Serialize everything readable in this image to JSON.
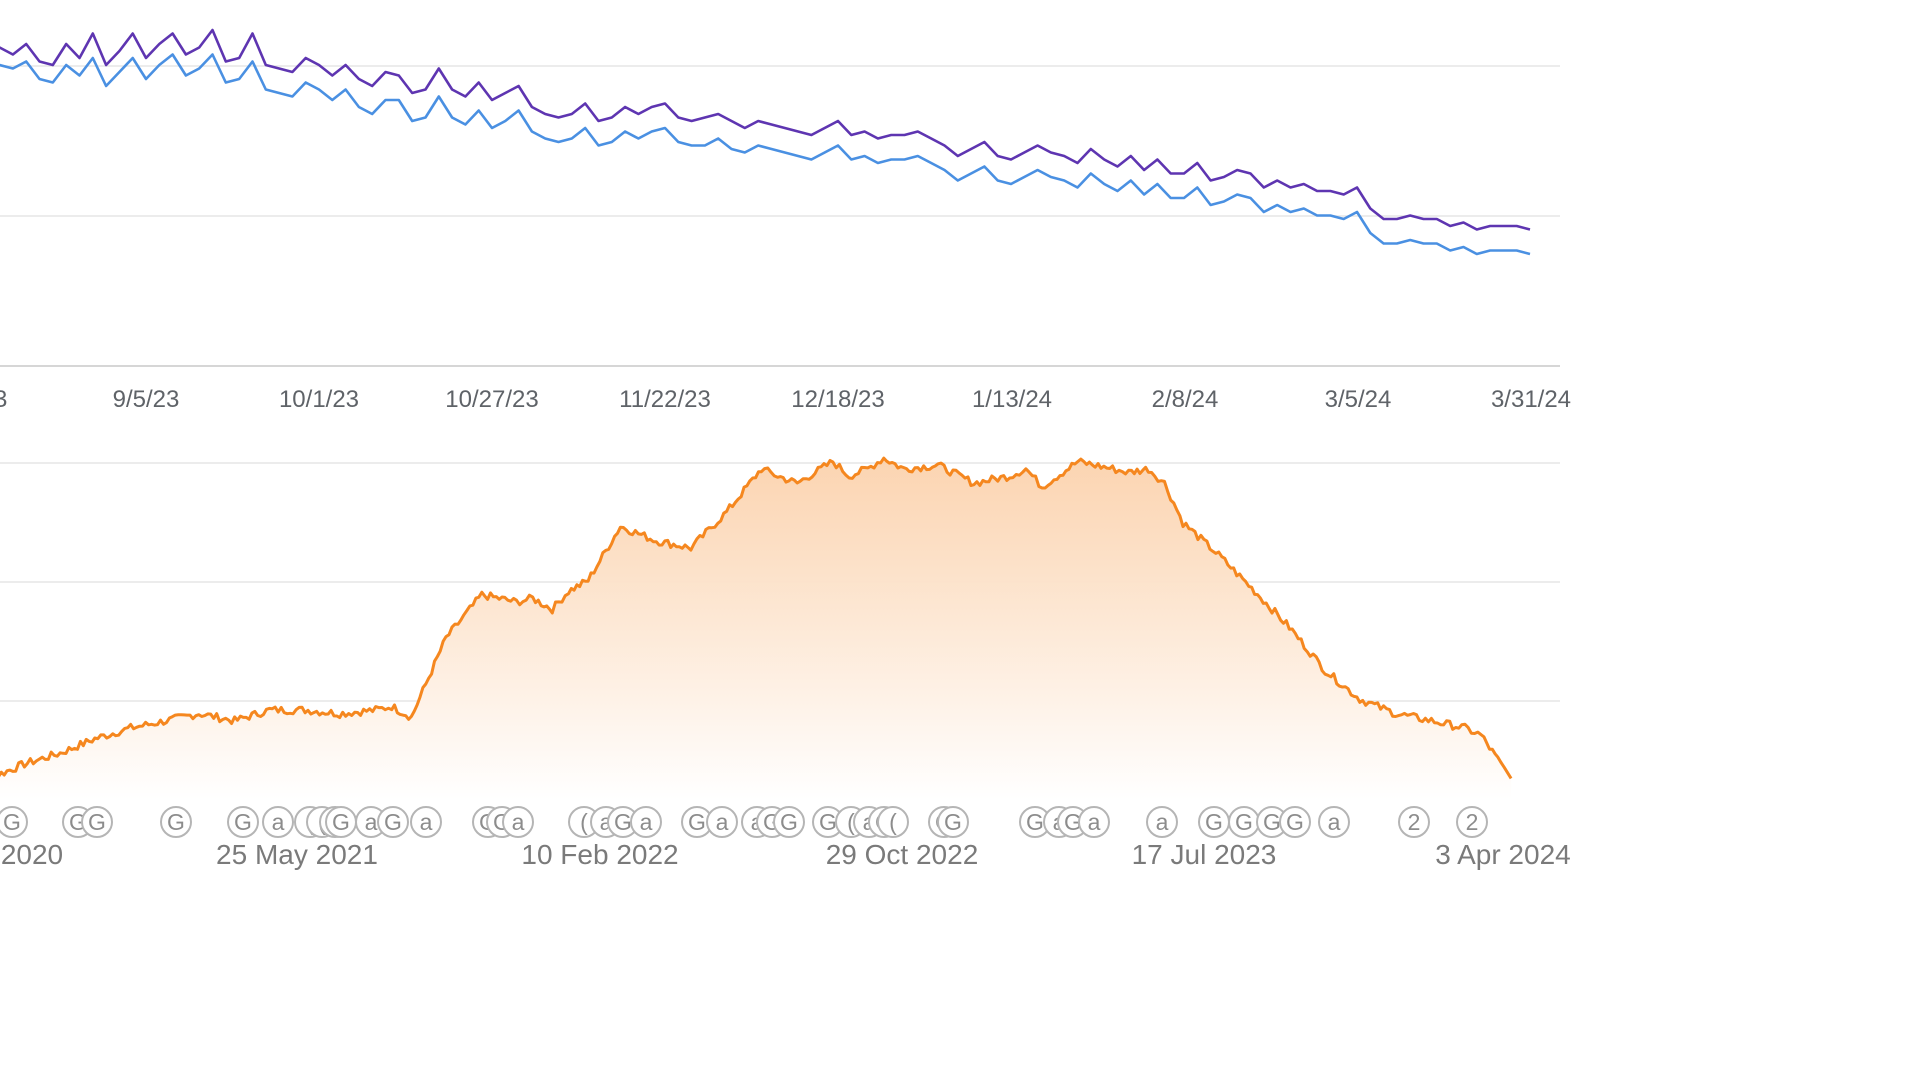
{
  "chart_data": [
    {
      "type": "line",
      "title": "",
      "xlabel": "",
      "ylabel": "",
      "tick_labels": [
        "3",
        "9/5/23",
        "10/1/23",
        "10/27/23",
        "11/22/23",
        "12/18/23",
        "1/13/24",
        "2/8/24",
        "3/5/24",
        "3/31/24"
      ],
      "grid": true,
      "colors": {
        "series_a": "#5e35b1",
        "series_b": "#4a90e2",
        "grid": "#e6e6e6",
        "axis": "#c8c8c8"
      },
      "series": [
        {
          "color": "#5e35b1",
          "x_dates": [
            "2023-08-10",
            "2023-08-12",
            "2023-08-14",
            "2023-08-16",
            "2023-08-18",
            "2023-08-20",
            "2023-08-22",
            "2023-08-24",
            "2023-08-26",
            "2023-08-28",
            "2023-08-30",
            "2023-09-01",
            "2023-09-03",
            "2023-09-05",
            "2023-09-07",
            "2023-09-09",
            "2023-09-11",
            "2023-09-13",
            "2023-09-15",
            "2023-09-17",
            "2023-09-19",
            "2023-09-21",
            "2023-09-23",
            "2023-09-25",
            "2023-09-27",
            "2023-09-29",
            "2023-10-01",
            "2023-10-03",
            "2023-10-05",
            "2023-10-07",
            "2023-10-09",
            "2023-10-11",
            "2023-10-13",
            "2023-10-15",
            "2023-10-17",
            "2023-10-19",
            "2023-10-21",
            "2023-10-23",
            "2023-10-25",
            "2023-10-27",
            "2023-10-29",
            "2023-10-31",
            "2023-11-02",
            "2023-11-04",
            "2023-11-06",
            "2023-11-08",
            "2023-11-10",
            "2023-11-12",
            "2023-11-14",
            "2023-11-16",
            "2023-11-18",
            "2023-11-20",
            "2023-11-22",
            "2023-11-24",
            "2023-11-26",
            "2023-11-28",
            "2023-11-30",
            "2023-12-02",
            "2023-12-04",
            "2023-12-06",
            "2023-12-08",
            "2023-12-10",
            "2023-12-12",
            "2023-12-14",
            "2023-12-16",
            "2023-12-18",
            "2023-12-20",
            "2023-12-22",
            "2023-12-24",
            "2023-12-26",
            "2023-12-28",
            "2023-12-30",
            "2024-01-01",
            "2024-01-03",
            "2024-01-05",
            "2024-01-07",
            "2024-01-09",
            "2024-01-11",
            "2024-01-13",
            "2024-01-15",
            "2024-01-17",
            "2024-01-19",
            "2024-01-21",
            "2024-01-23",
            "2024-01-25",
            "2024-01-27",
            "2024-01-29",
            "2024-01-31",
            "2024-02-02",
            "2024-02-04",
            "2024-02-06",
            "2024-02-08",
            "2024-02-10",
            "2024-02-12",
            "2024-02-14",
            "2024-02-16",
            "2024-02-18",
            "2024-02-20",
            "2024-02-22",
            "2024-02-24",
            "2024-02-26",
            "2024-02-28",
            "2024-03-01",
            "2024-03-03",
            "2024-03-05",
            "2024-03-07",
            "2024-03-09",
            "2024-03-11",
            "2024-03-13",
            "2024-03-15",
            "2024-03-17",
            "2024-03-19",
            "2024-03-21",
            "2024-03-23",
            "2024-03-25",
            "2024-03-27",
            "2024-03-29",
            "2024-03-31"
          ],
          "values": [
            0.89,
            0.88,
            0.91,
            0.89,
            0.92,
            0.87,
            0.86,
            0.92,
            0.88,
            0.95,
            0.86,
            0.9,
            0.95,
            0.88,
            0.92,
            0.95,
            0.89,
            0.91,
            0.96,
            0.87,
            0.88,
            0.95,
            0.86,
            0.85,
            0.84,
            0.88,
            0.86,
            0.83,
            0.86,
            0.82,
            0.8,
            0.84,
            0.83,
            0.78,
            0.79,
            0.85,
            0.79,
            0.77,
            0.81,
            0.76,
            0.78,
            0.8,
            0.74,
            0.72,
            0.71,
            0.72,
            0.75,
            0.7,
            0.71,
            0.74,
            0.72,
            0.74,
            0.75,
            0.71,
            0.7,
            0.71,
            0.72,
            0.7,
            0.68,
            0.7,
            0.69,
            0.68,
            0.67,
            0.66,
            0.68,
            0.7,
            0.66,
            0.67,
            0.65,
            0.66,
            0.66,
            0.67,
            0.65,
            0.63,
            0.6,
            0.62,
            0.64,
            0.6,
            0.59,
            0.61,
            0.63,
            0.61,
            0.6,
            0.58,
            0.62,
            0.59,
            0.57,
            0.6,
            0.56,
            0.59,
            0.55,
            0.55,
            0.58,
            0.53,
            0.54,
            0.56,
            0.55,
            0.51,
            0.53,
            0.51,
            0.52,
            0.5,
            0.5,
            0.49,
            0.51,
            0.45,
            0.42,
            0.42,
            0.43,
            0.42,
            0.42,
            0.4,
            0.41,
            0.39,
            0.4,
            0.4,
            0.4,
            0.39
          ]
        },
        {
          "color": "#4a90e2",
          "x_dates": [
            "2023-08-10",
            "2023-08-12",
            "2023-08-14",
            "2023-08-16",
            "2023-08-18",
            "2023-08-20",
            "2023-08-22",
            "2023-08-24",
            "2023-08-26",
            "2023-08-28",
            "2023-08-30",
            "2023-09-01",
            "2023-09-03",
            "2023-09-05",
            "2023-09-07",
            "2023-09-09",
            "2023-09-11",
            "2023-09-13",
            "2023-09-15",
            "2023-09-17",
            "2023-09-19",
            "2023-09-21",
            "2023-09-23",
            "2023-09-25",
            "2023-09-27",
            "2023-09-29",
            "2023-10-01",
            "2023-10-03",
            "2023-10-05",
            "2023-10-07",
            "2023-10-09",
            "2023-10-11",
            "2023-10-13",
            "2023-10-15",
            "2023-10-17",
            "2023-10-19",
            "2023-10-21",
            "2023-10-23",
            "2023-10-25",
            "2023-10-27",
            "2023-10-29",
            "2023-10-31",
            "2023-11-02",
            "2023-11-04",
            "2023-11-06",
            "2023-11-08",
            "2023-11-10",
            "2023-11-12",
            "2023-11-14",
            "2023-11-16",
            "2023-11-18",
            "2023-11-20",
            "2023-11-22",
            "2023-11-24",
            "2023-11-26",
            "2023-11-28",
            "2023-11-30",
            "2023-12-02",
            "2023-12-04",
            "2023-12-06",
            "2023-12-08",
            "2023-12-10",
            "2023-12-12",
            "2023-12-14",
            "2023-12-16",
            "2023-12-18",
            "2023-12-20",
            "2023-12-22",
            "2023-12-24",
            "2023-12-26",
            "2023-12-28",
            "2023-12-30",
            "2024-01-01",
            "2024-01-03",
            "2024-01-05",
            "2024-01-07",
            "2024-01-09",
            "2024-01-11",
            "2024-01-13",
            "2024-01-15",
            "2024-01-17",
            "2024-01-19",
            "2024-01-21",
            "2024-01-23",
            "2024-01-25",
            "2024-01-27",
            "2024-01-29",
            "2024-01-31",
            "2024-02-02",
            "2024-02-04",
            "2024-02-06",
            "2024-02-08",
            "2024-02-10",
            "2024-02-12",
            "2024-02-14",
            "2024-02-16",
            "2024-02-18",
            "2024-02-20",
            "2024-02-22",
            "2024-02-24",
            "2024-02-26",
            "2024-02-28",
            "2024-03-01",
            "2024-03-03",
            "2024-03-05",
            "2024-03-07",
            "2024-03-09",
            "2024-03-11",
            "2024-03-13",
            "2024-03-15",
            "2024-03-17",
            "2024-03-19",
            "2024-03-21",
            "2024-03-23",
            "2024-03-25",
            "2024-03-27",
            "2024-03-29",
            "2024-03-31"
          ],
          "values": [
            0.86,
            0.84,
            0.86,
            0.85,
            0.87,
            0.82,
            0.81,
            0.86,
            0.83,
            0.88,
            0.8,
            0.84,
            0.88,
            0.82,
            0.86,
            0.89,
            0.83,
            0.85,
            0.89,
            0.81,
            0.82,
            0.87,
            0.79,
            0.78,
            0.77,
            0.81,
            0.79,
            0.76,
            0.79,
            0.74,
            0.72,
            0.76,
            0.76,
            0.7,
            0.71,
            0.77,
            0.71,
            0.69,
            0.73,
            0.68,
            0.7,
            0.73,
            0.67,
            0.65,
            0.64,
            0.65,
            0.68,
            0.63,
            0.64,
            0.67,
            0.65,
            0.67,
            0.68,
            0.64,
            0.63,
            0.63,
            0.65,
            0.62,
            0.61,
            0.63,
            0.62,
            0.61,
            0.6,
            0.59,
            0.61,
            0.63,
            0.59,
            0.6,
            0.58,
            0.59,
            0.59,
            0.6,
            0.58,
            0.56,
            0.53,
            0.55,
            0.57,
            0.53,
            0.52,
            0.54,
            0.56,
            0.54,
            0.53,
            0.51,
            0.55,
            0.52,
            0.5,
            0.53,
            0.49,
            0.52,
            0.48,
            0.48,
            0.51,
            0.46,
            0.47,
            0.49,
            0.48,
            0.44,
            0.46,
            0.44,
            0.45,
            0.43,
            0.43,
            0.42,
            0.44,
            0.38,
            0.35,
            0.35,
            0.36,
            0.35,
            0.35,
            0.33,
            0.34,
            0.32,
            0.33,
            0.33,
            0.33,
            0.32
          ]
        }
      ]
    },
    {
      "type": "area",
      "title": "",
      "xlabel": "",
      "ylabel": "",
      "tick_labels": [
        "2020",
        "25 May 2021",
        "10 Feb 2022",
        "29 Oct 2022",
        "17 Jul 2023",
        "3 Apr 2024"
      ],
      "grid": true,
      "colors": {
        "line": "#f5871f",
        "fill_top": "#fbd2ad",
        "fill_bottom": "#ffffff",
        "grid": "#e6e6e6",
        "annotation": "#9a9a9a"
      },
      "series": [
        {
          "color": "#f5871f",
          "x_dates": [
            "2020-08-01",
            "2020-09-01",
            "2020-10-01",
            "2020-11-01",
            "2020-12-01",
            "2021-01-01",
            "2021-02-01",
            "2021-03-01",
            "2021-04-01",
            "2021-05-01",
            "2021-06-01",
            "2021-07-01",
            "2021-08-01",
            "2021-08-15",
            "2021-09-01",
            "2021-10-01",
            "2021-11-01",
            "2021-12-01",
            "2021-12-15",
            "2022-01-01",
            "2022-01-15",
            "2022-02-01",
            "2022-03-01",
            "2022-04-01",
            "2022-05-01",
            "2022-06-01",
            "2022-07-01",
            "2022-07-15",
            "2022-08-01",
            "2022-09-01",
            "2022-09-15",
            "2022-10-01",
            "2022-10-15",
            "2022-11-01",
            "2022-12-01",
            "2023-01-01",
            "2023-02-01",
            "2023-02-15",
            "2023-03-01",
            "2023-04-01",
            "2023-05-01",
            "2023-05-15",
            "2023-06-01",
            "2023-06-15",
            "2023-07-01",
            "2023-08-01",
            "2023-09-01",
            "2023-10-01",
            "2023-11-01",
            "2023-12-01",
            "2024-01-01",
            "2024-02-01",
            "2024-03-01",
            "2024-03-15",
            "2024-04-01",
            "2024-04-10"
          ],
          "values": [
            0.04,
            0.06,
            0.1,
            0.13,
            0.17,
            0.2,
            0.22,
            0.24,
            0.22,
            0.25,
            0.25,
            0.24,
            0.25,
            0.26,
            0.23,
            0.45,
            0.57,
            0.55,
            0.56,
            0.53,
            0.58,
            0.61,
            0.76,
            0.72,
            0.7,
            0.8,
            0.92,
            0.9,
            0.88,
            0.94,
            0.9,
            0.92,
            0.95,
            0.92,
            0.93,
            0.88,
            0.9,
            0.92,
            0.87,
            0.94,
            0.92,
            0.91,
            0.92,
            0.88,
            0.77,
            0.68,
            0.58,
            0.48,
            0.36,
            0.28,
            0.24,
            0.22,
            0.2,
            0.18,
            0.1,
            0.06
          ]
        }
      ],
      "annotations": [
        "G",
        "G",
        "G",
        "G",
        "G",
        "a",
        "(",
        "(",
        "(",
        "G",
        "a",
        "G",
        "a",
        "G",
        "G",
        "a",
        "(",
        "a",
        "G",
        "a",
        "G",
        "a",
        "a",
        "G",
        "G",
        "G",
        "(",
        "a",
        "G",
        "(",
        "G",
        "G",
        "G",
        "a",
        "G",
        "a",
        "a",
        "G",
        "G",
        "G",
        "G",
        "a",
        "2"
      ]
    }
  ]
}
